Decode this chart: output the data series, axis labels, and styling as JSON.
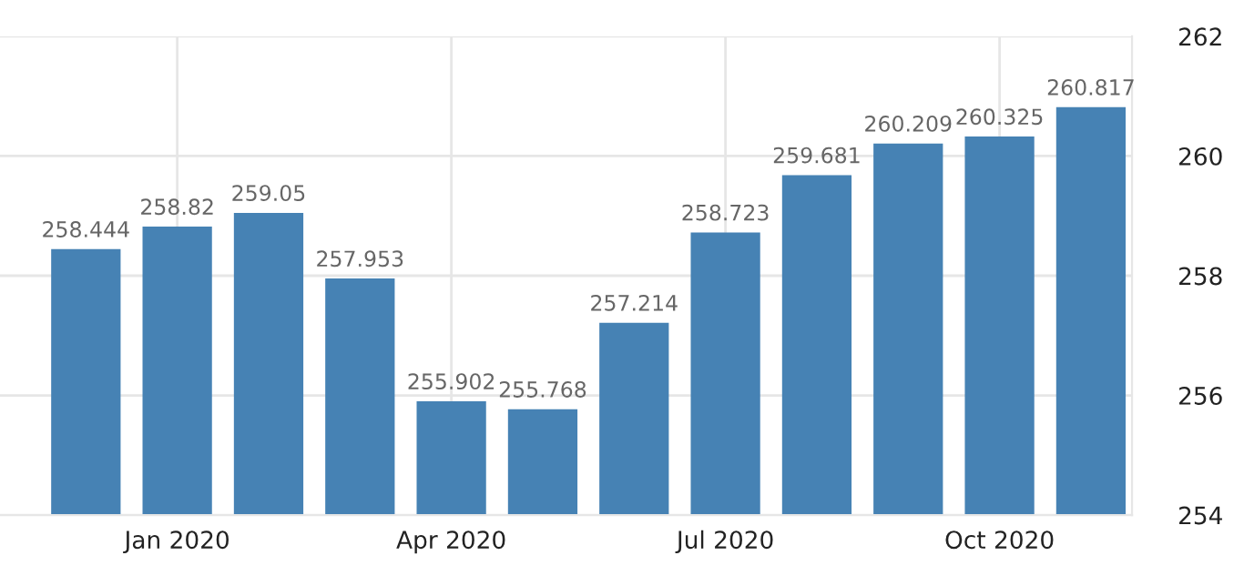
{
  "chart_data": {
    "type": "bar",
    "categories": [
      null,
      "Jan 2020",
      null,
      null,
      "Apr 2020",
      null,
      null,
      "Jul 2020",
      null,
      null,
      "Oct 2020",
      null
    ],
    "values": [
      258.444,
      258.82,
      259.05,
      257.953,
      255.902,
      255.768,
      257.214,
      258.723,
      259.681,
      260.209,
      260.325,
      260.817
    ],
    "color": "#4682b4",
    "ylim": [
      254,
      262
    ],
    "yticks": [
      254,
      256,
      258,
      260,
      262
    ],
    "grid": true,
    "data_labels": true
  }
}
